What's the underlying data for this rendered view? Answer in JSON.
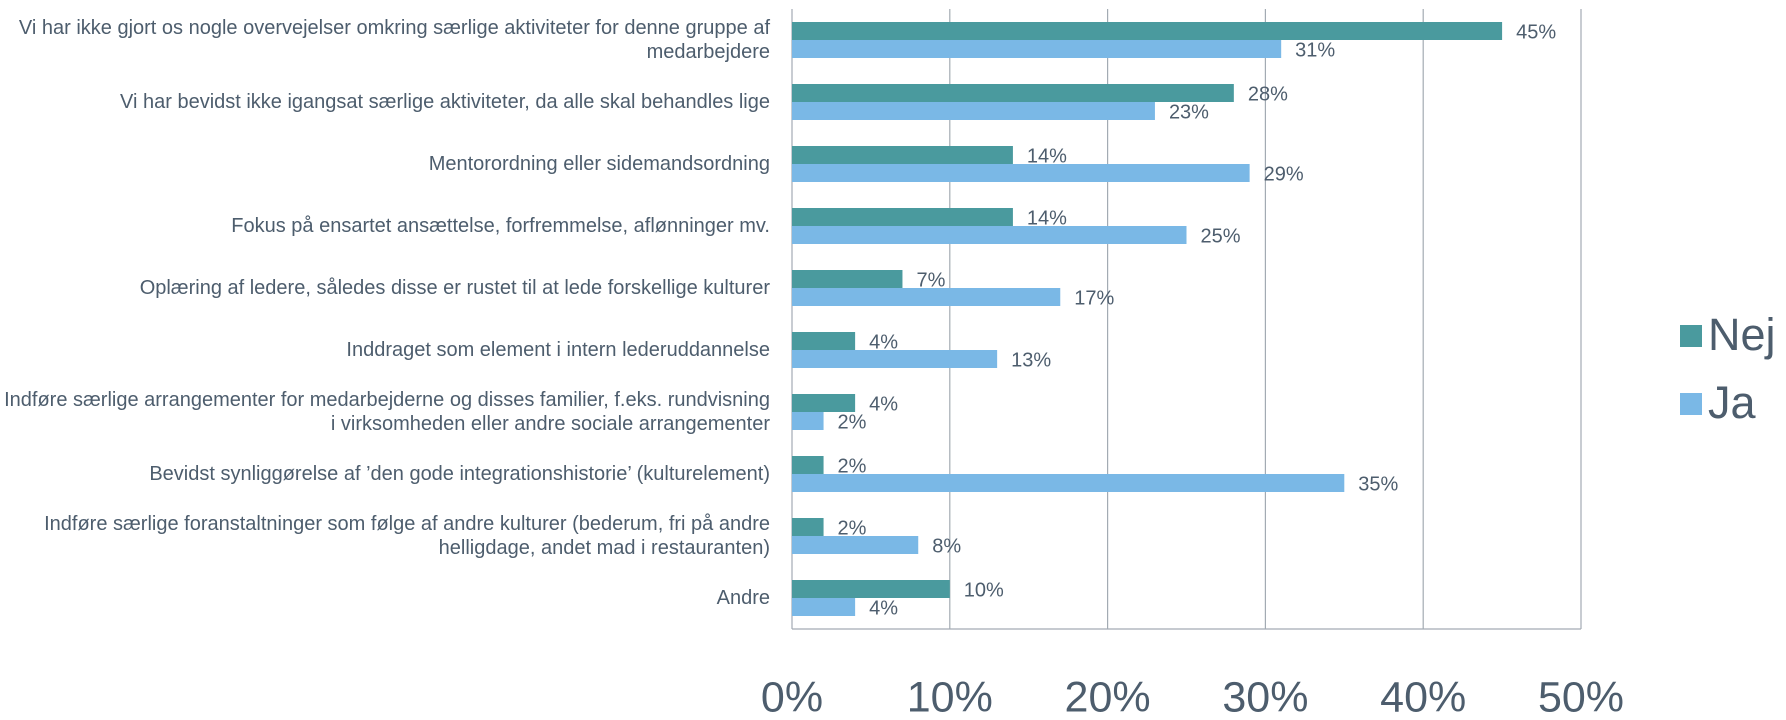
{
  "chart_data": {
    "type": "bar",
    "orientation": "horizontal",
    "categories": [
      "Vi har ikke gjort os nogle overvejelser omkring særlige aktiviteter for denne gruppe af medarbejdere",
      "Vi har bevidst ikke igangsat særlige aktiviteter, da alle skal behandles lige",
      "Mentorordning eller sidemandsordning",
      "Fokus på ensartet ansættelse, forfremmelse, aflønninger mv.",
      "Oplæring af ledere, således disse er rustet til at lede forskellige kulturer",
      "Inddraget som element i intern lederuddannelse",
      "Indføre særlige arrangementer for medarbejderne og disses familier, f.eks. rundvisning i virksomheden eller andre sociale arrangementer",
      "Bevidst synliggørelse af ’den gode integrationshistorie’ (kulturelement)",
      "Indføre særlige foranstaltninger som følge af andre kulturer (bederum, fri på andre helligdage, andet mad i restauranten)",
      "Andre"
    ],
    "series": [
      {
        "name": "Nej",
        "color": "#4a9a9e",
        "values": [
          45,
          28,
          14,
          14,
          7,
          4,
          4,
          2,
          2,
          10
        ],
        "value_labels": [
          "45%",
          "28%",
          "14%",
          "14%",
          "7%",
          "4%",
          "4%",
          "2%",
          "2%",
          "10%"
        ]
      },
      {
        "name": "Ja",
        "color": "#7ab8e6",
        "values": [
          31,
          23,
          29,
          25,
          17,
          13,
          2,
          35,
          8,
          4
        ],
        "value_labels": [
          "31%",
          "23%",
          "29%",
          "25%",
          "17%",
          "13%",
          "2%",
          "35%",
          "8%",
          "4%"
        ]
      }
    ],
    "xlim": [
      0,
      50
    ],
    "xticks": [
      {
        "value": 0,
        "label": "0%"
      },
      {
        "value": 10,
        "label": "10%"
      },
      {
        "value": 20,
        "label": "20%"
      },
      {
        "value": 30,
        "label": "30%"
      },
      {
        "value": 40,
        "label": "40%"
      },
      {
        "value": 50,
        "label": "50%"
      }
    ],
    "grid": true,
    "legend": "right"
  }
}
